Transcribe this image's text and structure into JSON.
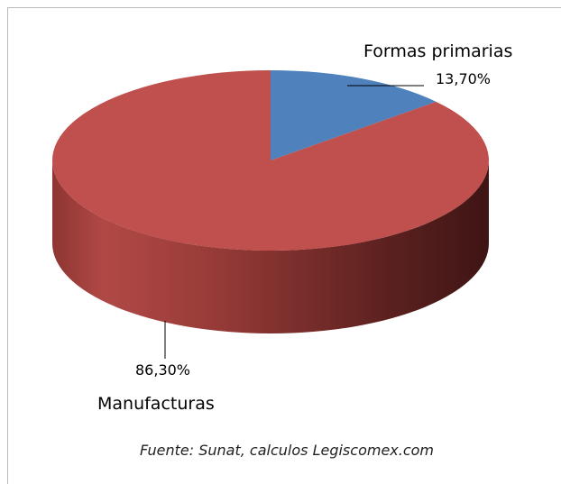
{
  "chart_data": {
    "type": "pie",
    "categories": [
      "Formas primarias",
      "Manufacturas"
    ],
    "values": [
      13.7,
      86.3
    ],
    "value_labels": [
      "13,70%",
      "86,30%"
    ],
    "colors": [
      "#4f81bd",
      "#c0504d"
    ],
    "source": "Fuente: Sunat, calculos Legiscomex.com"
  }
}
